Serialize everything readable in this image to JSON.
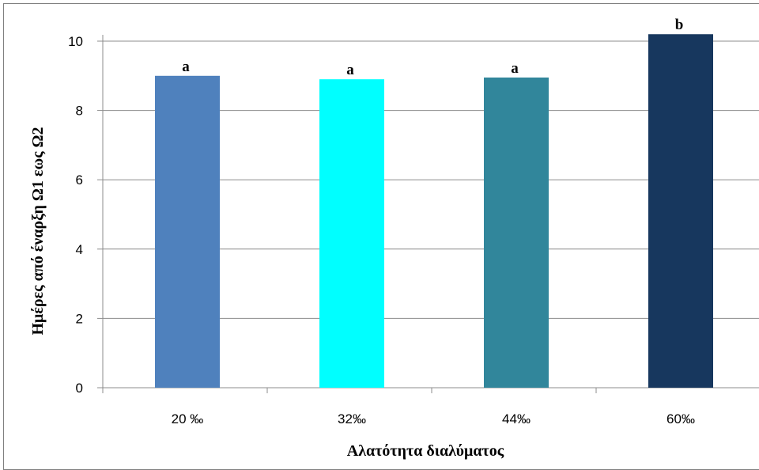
{
  "chart_data": {
    "type": "bar",
    "categories": [
      "20 ‰",
      "32‰",
      "44‰",
      "60‰"
    ],
    "values": [
      9.0,
      8.9,
      8.95,
      10.2
    ],
    "bar_labels": [
      "a",
      "a",
      "a",
      "b"
    ],
    "colors": [
      "#4f81bd",
      "#00ffff",
      "#31869b",
      "#17375e"
    ],
    "title": "",
    "xlabel": "Αλατότητα διαλύματος",
    "ylabel": "Ημέρες από έναρξη  Ω1 εως Ω2",
    "ylim": [
      0,
      10
    ],
    "yticks": [
      0,
      2,
      4,
      6,
      8,
      10
    ],
    "grid": true,
    "legend": false
  }
}
